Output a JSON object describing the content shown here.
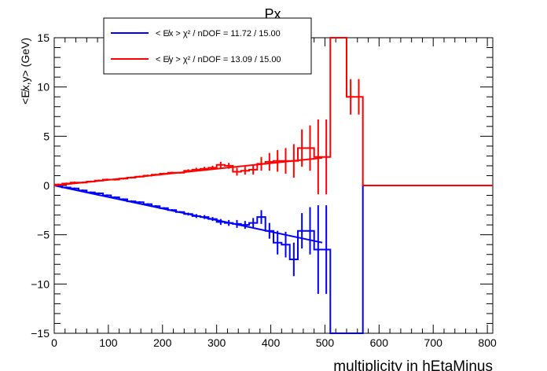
{
  "chart_data": {
    "type": "line",
    "title": "Px",
    "xlabel": "multiplicity in hEtaMinus",
    "ylabel": "<E̸x,y> (GeV)",
    "xlim": [
      0,
      810
    ],
    "ylim": [
      -15,
      15
    ],
    "xticks": [
      0,
      100,
      200,
      300,
      400,
      500,
      600,
      700,
      800
    ],
    "yticks": [
      -15,
      -10,
      -5,
      0,
      5,
      10,
      15
    ],
    "grid": false,
    "legend_position": "top-left",
    "series": [
      {
        "name": "< E̸x >  χ² / nDOF = 11.72 / 15.00",
        "color": "#0000ff",
        "bin_width": 15,
        "bins": [
          [
            0,
            0.0,
            0.1
          ],
          [
            15,
            -0.2,
            0.1
          ],
          [
            30,
            -0.3,
            0.1
          ],
          [
            45,
            -0.5,
            0.1
          ],
          [
            60,
            -0.7,
            0.1
          ],
          [
            75,
            -0.8,
            0.1
          ],
          [
            90,
            -1.0,
            0.1
          ],
          [
            105,
            -1.2,
            0.1
          ],
          [
            120,
            -1.4,
            0.1
          ],
          [
            135,
            -1.6,
            0.1
          ],
          [
            150,
            -1.7,
            0.1
          ],
          [
            165,
            -1.9,
            0.1
          ],
          [
            180,
            -2.1,
            0.1
          ],
          [
            195,
            -2.3,
            0.1
          ],
          [
            210,
            -2.5,
            0.1
          ],
          [
            225,
            -2.7,
            0.1
          ],
          [
            240,
            -2.9,
            0.15
          ],
          [
            255,
            -3.1,
            0.2
          ],
          [
            270,
            -3.2,
            0.2
          ],
          [
            285,
            -3.4,
            0.2
          ],
          [
            300,
            -3.7,
            0.3
          ],
          [
            315,
            -3.8,
            0.3
          ],
          [
            330,
            -3.9,
            0.4
          ],
          [
            345,
            -4.0,
            0.4
          ],
          [
            360,
            -3.8,
            0.5
          ],
          [
            375,
            -3.2,
            0.7
          ],
          [
            390,
            -4.6,
            0.8
          ],
          [
            405,
            -5.8,
            1.2
          ],
          [
            420,
            -6.0,
            1.3
          ],
          [
            435,
            -7.5,
            1.7
          ],
          [
            450,
            -4.6,
            1.8
          ],
          [
            465,
            -4.6,
            2.4
          ],
          [
            480,
            -6.5,
            4.5
          ],
          [
            495,
            -6.5,
            4.5
          ],
          [
            510,
            -15.0,
            0
          ],
          [
            540,
            -15.0,
            0
          ],
          [
            555,
            -15.0,
            0
          ],
          [
            570,
            0.0,
            0
          ],
          [
            585,
            0.0,
            0
          ],
          [
            600,
            0.0,
            0
          ],
          [
            615,
            0.0,
            0
          ],
          [
            630,
            0.0,
            0
          ],
          [
            645,
            0.0,
            0
          ],
          [
            660,
            0.0,
            0
          ],
          [
            675,
            0.0,
            0
          ],
          [
            690,
            0.0,
            0
          ],
          [
            705,
            0.0,
            0
          ],
          [
            720,
            0.0,
            0
          ],
          [
            735,
            0.0,
            0
          ],
          [
            750,
            0.0,
            0
          ],
          [
            765,
            0.0,
            0
          ],
          [
            780,
            0.0,
            0
          ],
          [
            795,
            0.0,
            0
          ]
        ],
        "fit": {
          "x": [
            0,
            495
          ],
          "y": [
            0,
            -5.8
          ]
        }
      },
      {
        "name": "< E̸y >  χ² / nDOF = 13.09 / 15.00",
        "color": "#ff0000",
        "bin_width": 15,
        "bins": [
          [
            0,
            0.1,
            0.1
          ],
          [
            15,
            0.2,
            0.1
          ],
          [
            30,
            0.3,
            0.1
          ],
          [
            45,
            0.3,
            0.1
          ],
          [
            60,
            0.4,
            0.1
          ],
          [
            75,
            0.5,
            0.1
          ],
          [
            90,
            0.6,
            0.1
          ],
          [
            105,
            0.6,
            0.1
          ],
          [
            120,
            0.7,
            0.1
          ],
          [
            135,
            0.8,
            0.1
          ],
          [
            150,
            0.9,
            0.1
          ],
          [
            165,
            1.0,
            0.1
          ],
          [
            180,
            1.1,
            0.1
          ],
          [
            195,
            1.2,
            0.1
          ],
          [
            210,
            1.3,
            0.1
          ],
          [
            225,
            1.3,
            0.1
          ],
          [
            240,
            1.5,
            0.15
          ],
          [
            255,
            1.6,
            0.2
          ],
          [
            270,
            1.7,
            0.2
          ],
          [
            285,
            1.8,
            0.2
          ],
          [
            300,
            2.1,
            0.3
          ],
          [
            315,
            2.0,
            0.3
          ],
          [
            330,
            1.4,
            0.4
          ],
          [
            345,
            1.5,
            0.4
          ],
          [
            360,
            1.6,
            0.5
          ],
          [
            375,
            2.2,
            0.7
          ],
          [
            390,
            2.4,
            0.9
          ],
          [
            405,
            2.5,
            1.1
          ],
          [
            420,
            2.5,
            1.3
          ],
          [
            435,
            2.5,
            1.7
          ],
          [
            450,
            3.8,
            1.9
          ],
          [
            465,
            3.8,
            2.3
          ],
          [
            480,
            2.9,
            3.8
          ],
          [
            495,
            2.9,
            3.8
          ],
          [
            510,
            18.0,
            0
          ],
          [
            525,
            18.0,
            0
          ],
          [
            540,
            9.0,
            1.8
          ],
          [
            555,
            9.0,
            1.8
          ],
          [
            570,
            0.0,
            0
          ],
          [
            585,
            0.0,
            0
          ],
          [
            600,
            0.0,
            0
          ],
          [
            615,
            0.0,
            0
          ],
          [
            630,
            0.0,
            0
          ],
          [
            645,
            0.0,
            0
          ],
          [
            660,
            0.0,
            0
          ],
          [
            675,
            0.0,
            0
          ],
          [
            690,
            0.0,
            0
          ],
          [
            705,
            0.0,
            0
          ],
          [
            720,
            0.0,
            0
          ],
          [
            735,
            0.0,
            0
          ],
          [
            750,
            0.0,
            0
          ],
          [
            765,
            0.0,
            0
          ],
          [
            780,
            0.0,
            0
          ],
          [
            795,
            0.0,
            0
          ]
        ],
        "fit": {
          "x": [
            0,
            495
          ],
          "y": [
            0,
            2.8
          ]
        }
      }
    ]
  }
}
